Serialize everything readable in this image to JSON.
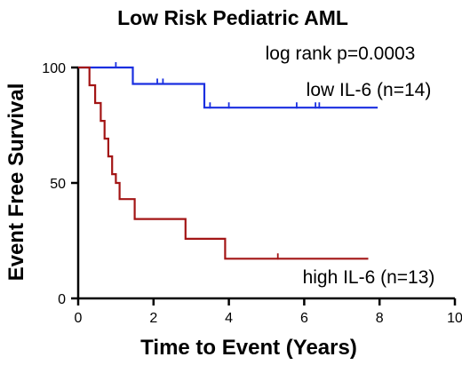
{
  "chart_data": {
    "type": "line",
    "title": "Low Risk Pediatric AML",
    "xlabel": "Time to Event (Years)",
    "ylabel": "Event Free Survival",
    "xlim": [
      0,
      10
    ],
    "ylim": [
      0,
      100
    ],
    "xticks": [
      0,
      2,
      4,
      6,
      8,
      10
    ],
    "yticks": [
      0,
      50,
      100
    ],
    "grid": false,
    "annotations": [
      {
        "text": "log rank p=0.0003"
      },
      {
        "text": "low IL-6  (n=14)"
      },
      {
        "text": "high IL-6 (n=13)"
      }
    ],
    "series": [
      {
        "name": "low IL-6",
        "color": "#1a2fe0",
        "step_x": [
          0,
          1.45,
          1.45,
          3.35,
          3.35,
          7.95
        ],
        "step_y": [
          100,
          100,
          92.9,
          92.9,
          82.6,
          82.6
        ],
        "censor_x": [
          1.0,
          2.1,
          2.25,
          3.5,
          4.0,
          5.8,
          6.3,
          6.4
        ],
        "censor_y": [
          100,
          92.9,
          92.9,
          82.6,
          82.6,
          82.6,
          82.6,
          82.6
        ]
      },
      {
        "name": "high IL-6",
        "color": "#a31515",
        "step_x": [
          0,
          0.3,
          0.3,
          0.45,
          0.45,
          0.6,
          0.6,
          0.7,
          0.7,
          0.8,
          0.8,
          0.9,
          0.9,
          1.0,
          1.0,
          1.1,
          1.1,
          1.5,
          1.5,
          2.85,
          2.85,
          3.9,
          3.9,
          7.7
        ],
        "step_y": [
          100,
          100,
          92.3,
          92.3,
          84.6,
          84.6,
          76.9,
          76.9,
          69.2,
          69.2,
          61.5,
          61.5,
          53.8,
          53.8,
          50,
          50,
          43,
          43,
          34.4,
          34.4,
          25.8,
          25.8,
          17.2,
          17.2
        ],
        "censor_x": [
          5.3
        ],
        "censor_y": [
          17.2
        ]
      }
    ]
  }
}
